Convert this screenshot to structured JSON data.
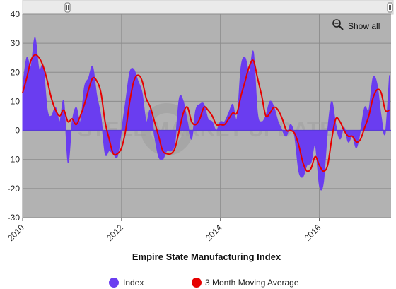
{
  "chart_data": {
    "type": "area",
    "title": "Empire State Manufacturing Index",
    "xlabel": "",
    "ylabel": "",
    "xlim": [
      2010.0,
      2017.45
    ],
    "ylim": [
      -30,
      40
    ],
    "y_ticks": [
      -30,
      -20,
      -10,
      0,
      10,
      20,
      30,
      40
    ],
    "x_ticks": [
      "2010",
      "2012",
      "2014",
      "2016"
    ],
    "x_tick_values": [
      2010,
      2012,
      2014,
      2016
    ],
    "grid": true,
    "legend_position": "bottom-center",
    "background_watermark": "STEEL MARKET UPDATE",
    "series": [
      {
        "name": "Index",
        "type": "area",
        "color": "#6a3df0",
        "points": [
          [
            2010.0,
            15
          ],
          [
            2010.083,
            25
          ],
          [
            2010.167,
            22
          ],
          [
            2010.25,
            32
          ],
          [
            2010.333,
            21
          ],
          [
            2010.417,
            22
          ],
          [
            2010.5,
            7
          ],
          [
            2010.583,
            5
          ],
          [
            2010.667,
            8
          ],
          [
            2010.75,
            3
          ],
          [
            2010.833,
            10
          ],
          [
            2010.917,
            -11
          ],
          [
            2011.0,
            3
          ],
          [
            2011.083,
            8
          ],
          [
            2011.167,
            3
          ],
          [
            2011.25,
            15
          ],
          [
            2011.333,
            18
          ],
          [
            2011.417,
            22
          ],
          [
            2011.5,
            12
          ],
          [
            2011.583,
            5
          ],
          [
            2011.667,
            -8
          ],
          [
            2011.75,
            -7
          ],
          [
            2011.833,
            -8
          ],
          [
            2011.917,
            -9
          ],
          [
            2012.0,
            0
          ],
          [
            2012.083,
            10
          ],
          [
            2012.167,
            20
          ],
          [
            2012.25,
            21
          ],
          [
            2012.333,
            17
          ],
          [
            2012.417,
            13
          ],
          [
            2012.5,
            3
          ],
          [
            2012.583,
            7
          ],
          [
            2012.667,
            -2
          ],
          [
            2012.75,
            -9
          ],
          [
            2012.833,
            -10
          ],
          [
            2012.917,
            -7
          ],
          [
            2013.0,
            -7
          ],
          [
            2013.083,
            -4
          ],
          [
            2013.167,
            11
          ],
          [
            2013.25,
            10
          ],
          [
            2013.333,
            3
          ],
          [
            2013.417,
            -3
          ],
          [
            2013.5,
            7
          ],
          [
            2013.583,
            9
          ],
          [
            2013.667,
            9
          ],
          [
            2013.75,
            4
          ],
          [
            2013.833,
            3
          ],
          [
            2013.917,
            0
          ],
          [
            2014.0,
            3
          ],
          [
            2014.083,
            3
          ],
          [
            2014.167,
            6
          ],
          [
            2014.25,
            9
          ],
          [
            2014.333,
            4
          ],
          [
            2014.417,
            22
          ],
          [
            2014.5,
            25
          ],
          [
            2014.583,
            20
          ],
          [
            2014.667,
            27
          ],
          [
            2014.75,
            6
          ],
          [
            2014.833,
            3
          ],
          [
            2014.917,
            5
          ],
          [
            2015.0,
            10
          ],
          [
            2015.083,
            8
          ],
          [
            2015.167,
            3
          ],
          [
            2015.25,
            0
          ],
          [
            2015.333,
            -2
          ],
          [
            2015.417,
            2
          ],
          [
            2015.5,
            -2
          ],
          [
            2015.583,
            -14
          ],
          [
            2015.667,
            -16
          ],
          [
            2015.75,
            -12
          ],
          [
            2015.833,
            -11
          ],
          [
            2015.917,
            -5
          ],
          [
            2016.0,
            -19
          ],
          [
            2016.083,
            -18
          ],
          [
            2016.167,
            0
          ],
          [
            2016.25,
            10
          ],
          [
            2016.333,
            2
          ],
          [
            2016.417,
            -3
          ],
          [
            2016.5,
            1
          ],
          [
            2016.583,
            -4
          ],
          [
            2016.667,
            -2
          ],
          [
            2016.75,
            -6
          ],
          [
            2016.833,
            0
          ],
          [
            2016.917,
            8
          ],
          [
            2017.0,
            7
          ],
          [
            2017.083,
            18
          ],
          [
            2017.167,
            16
          ],
          [
            2017.25,
            5
          ],
          [
            2017.333,
            -1
          ],
          [
            2017.417,
            19
          ]
        ]
      },
      {
        "name": "3 Month Moving Average",
        "type": "line",
        "color": "#e60000",
        "points": [
          [
            2010.0,
            13
          ],
          [
            2010.083,
            18
          ],
          [
            2010.167,
            24
          ],
          [
            2010.25,
            26
          ],
          [
            2010.333,
            25
          ],
          [
            2010.417,
            22
          ],
          [
            2010.5,
            17
          ],
          [
            2010.583,
            11
          ],
          [
            2010.667,
            7
          ],
          [
            2010.75,
            5
          ],
          [
            2010.833,
            7
          ],
          [
            2010.917,
            3
          ],
          [
            2011.0,
            4
          ],
          [
            2011.083,
            2
          ],
          [
            2011.167,
            5
          ],
          [
            2011.25,
            9
          ],
          [
            2011.333,
            14
          ],
          [
            2011.417,
            18
          ],
          [
            2011.5,
            17
          ],
          [
            2011.583,
            13
          ],
          [
            2011.667,
            3
          ],
          [
            2011.75,
            -3
          ],
          [
            2011.833,
            -8
          ],
          [
            2011.917,
            -8
          ],
          [
            2012.0,
            -6
          ],
          [
            2012.083,
            0
          ],
          [
            2012.167,
            10
          ],
          [
            2012.25,
            17
          ],
          [
            2012.333,
            19
          ],
          [
            2012.417,
            17
          ],
          [
            2012.5,
            11
          ],
          [
            2012.583,
            8
          ],
          [
            2012.667,
            3
          ],
          [
            2012.75,
            -2
          ],
          [
            2012.833,
            -7
          ],
          [
            2012.917,
            -8
          ],
          [
            2013.0,
            -8
          ],
          [
            2013.083,
            -6
          ],
          [
            2013.167,
            0
          ],
          [
            2013.25,
            6
          ],
          [
            2013.333,
            8
          ],
          [
            2013.417,
            3
          ],
          [
            2013.5,
            2
          ],
          [
            2013.583,
            4
          ],
          [
            2013.667,
            8
          ],
          [
            2013.75,
            7
          ],
          [
            2013.833,
            5
          ],
          [
            2013.917,
            2
          ],
          [
            2014.0,
            2
          ],
          [
            2014.083,
            2
          ],
          [
            2014.167,
            4
          ],
          [
            2014.25,
            6
          ],
          [
            2014.333,
            6
          ],
          [
            2014.417,
            12
          ],
          [
            2014.5,
            17
          ],
          [
            2014.583,
            22
          ],
          [
            2014.667,
            24
          ],
          [
            2014.75,
            18
          ],
          [
            2014.833,
            12
          ],
          [
            2014.917,
            5
          ],
          [
            2015.0,
            6
          ],
          [
            2015.083,
            8
          ],
          [
            2015.167,
            7
          ],
          [
            2015.25,
            4
          ],
          [
            2015.333,
            0
          ],
          [
            2015.417,
            0
          ],
          [
            2015.5,
            -1
          ],
          [
            2015.583,
            -5
          ],
          [
            2015.667,
            -11
          ],
          [
            2015.75,
            -14
          ],
          [
            2015.833,
            -13
          ],
          [
            2015.917,
            -9
          ],
          [
            2016.0,
            -12
          ],
          [
            2016.083,
            -14
          ],
          [
            2016.167,
            -12
          ],
          [
            2016.25,
            -3
          ],
          [
            2016.333,
            4
          ],
          [
            2016.417,
            3
          ],
          [
            2016.5,
            0
          ],
          [
            2016.583,
            -2
          ],
          [
            2016.667,
            -2
          ],
          [
            2016.75,
            -4
          ],
          [
            2016.833,
            -3
          ],
          [
            2016.917,
            1
          ],
          [
            2017.0,
            5
          ],
          [
            2017.083,
            11
          ],
          [
            2017.167,
            14
          ],
          [
            2017.25,
            13
          ],
          [
            2017.333,
            7
          ],
          [
            2017.417,
            7
          ]
        ]
      }
    ]
  },
  "controls": {
    "show_all_label": "Show all"
  },
  "colors": {
    "plot_background": "#b2b2b2",
    "grid_line": "#8c8c8c",
    "index_fill": "#6a3df0",
    "moving_average_line": "#e60000",
    "zero_line": "#5a3bd6"
  }
}
